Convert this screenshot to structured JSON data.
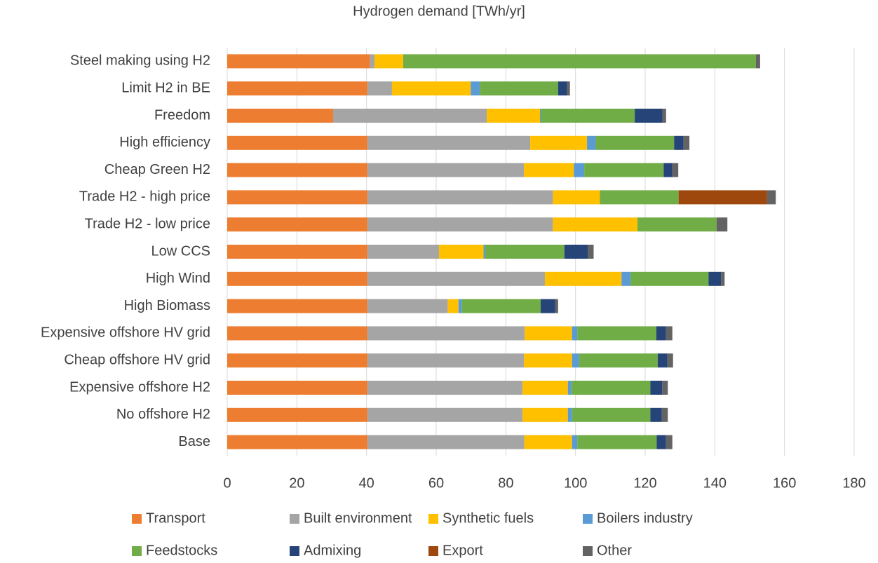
{
  "chart_data": {
    "type": "stacked_barh",
    "title": "Hydrogen demand [TWh/yr]",
    "categories": [
      "Steel making using H2",
      "Limit H2 in BE",
      "Freedom",
      "High efficiency",
      "Cheap Green H2",
      "Trade H2 - high price",
      "Trade H2 - low price",
      "Low CCS",
      "High Wind",
      "High Biomass",
      "Expensive offshore HV grid",
      "Cheap offshore HV grid",
      "Expensive offshore H2",
      "No offshore H2",
      "Base"
    ],
    "series": [
      {
        "name": "Transport",
        "color": "#ed7d31",
        "values": [
          41,
          40.3,
          30.4,
          40.3,
          40.3,
          40.3,
          40.3,
          40.3,
          40.3,
          40.3,
          40.3,
          40.3,
          40.3,
          40.3,
          40.3
        ]
      },
      {
        "name": "Built environment",
        "color": "#a5a5a5",
        "values": [
          1.3,
          7,
          44.1,
          46.7,
          44.9,
          53.2,
          53.2,
          20.5,
          50.9,
          23,
          45.1,
          44.9,
          44.5,
          44.5,
          45
        ]
      },
      {
        "name": "Synthetic fuels",
        "color": "#ffc000",
        "values": [
          8.2,
          22.6,
          15.3,
          16.3,
          14.3,
          13.5,
          24.3,
          12.8,
          22,
          3.1,
          13.6,
          13.8,
          13,
          13,
          13.7
        ]
      },
      {
        "name": "Boilers industry",
        "color": "#5b9bd5",
        "values": [
          0,
          2.6,
          0.2,
          2.5,
          3,
          0,
          0,
          0.5,
          2.6,
          1,
          1.5,
          2,
          1,
          1.2,
          1.5
        ]
      },
      {
        "name": "Feedstocks",
        "color": "#70ad47",
        "values": [
          101.3,
          22.5,
          27,
          22.5,
          22.8,
          22.6,
          22.7,
          22.7,
          22.4,
          22.6,
          22.7,
          22.6,
          22.7,
          22.5,
          22.8
        ]
      },
      {
        "name": "Admixing",
        "color": "#264478",
        "values": [
          0,
          2.6,
          8,
          2.7,
          2.5,
          0,
          0,
          6.7,
          3.6,
          4.2,
          2.8,
          2.8,
          3.4,
          3.3,
          2.7
        ]
      },
      {
        "name": "Export",
        "color": "#9e480e",
        "values": [
          0,
          0,
          0,
          0,
          0,
          25.4,
          0,
          0,
          0,
          0,
          0,
          0,
          0,
          0,
          0
        ]
      },
      {
        "name": "Other",
        "color": "#636363",
        "values": [
          1.2,
          0.8,
          1,
          1.7,
          1.7,
          2.5,
          3.1,
          1.7,
          1,
          0.8,
          1.8,
          1.6,
          1.6,
          1.7,
          1.8
        ]
      }
    ],
    "xlim": [
      0,
      180
    ],
    "xticks": [
      0,
      20,
      40,
      60,
      80,
      100,
      120,
      140,
      160,
      180
    ],
    "grid": true,
    "legend": "bottom"
  }
}
